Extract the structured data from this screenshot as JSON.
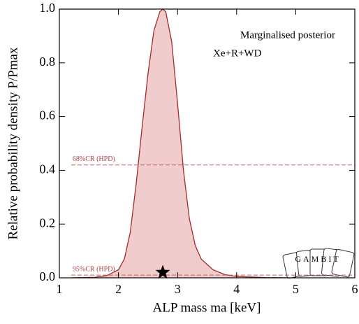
{
  "chart_data": {
    "type": "area",
    "x": [
      1.2,
      1.6,
      1.8,
      2.0,
      2.1,
      2.2,
      2.3,
      2.4,
      2.5,
      2.6,
      2.7,
      2.75,
      2.8,
      2.9,
      3.0,
      3.1,
      3.2,
      3.3,
      3.4,
      3.6,
      3.8,
      4.0,
      4.5,
      5.0
    ],
    "values": [
      0,
      0.002,
      0.008,
      0.03,
      0.07,
      0.17,
      0.35,
      0.56,
      0.76,
      0.92,
      0.99,
      1.0,
      0.99,
      0.88,
      0.65,
      0.4,
      0.22,
      0.12,
      0.07,
      0.03,
      0.012,
      0.005,
      0.001,
      0
    ],
    "color": "#a52a2a",
    "fill_color": "#f0cccc",
    "x_label": "ALP mass ma [keV]",
    "y_label": "Relative probability density P/Pmax",
    "xlim": [
      1,
      6
    ],
    "ylim": [
      0,
      1
    ],
    "xticks": [
      1,
      2,
      3,
      4,
      5,
      6
    ],
    "yticks": [
      {
        "value": 0,
        "label": "0.0"
      },
      {
        "value": 0.2,
        "label": "0.2"
      },
      {
        "value": 0.4,
        "label": "0.4"
      },
      {
        "value": 0.6,
        "label": "0.6"
      },
      {
        "value": 0.8,
        "label": "0.8"
      },
      {
        "value": 1,
        "label": "1.0"
      }
    ],
    "hpd_lines": [
      {
        "label": "68%CR (HPD)",
        "value": 0.42,
        "x_start": 1.2
      },
      {
        "label": "95%CR (HPD)",
        "value": 0.01,
        "x_start": 1.2
      }
    ],
    "best_fit": {
      "x": 2.75,
      "y": 0.02
    },
    "annotations": [
      "Marginalised posterior",
      "Xe+R+WD"
    ],
    "logo": "GAMBIT"
  }
}
